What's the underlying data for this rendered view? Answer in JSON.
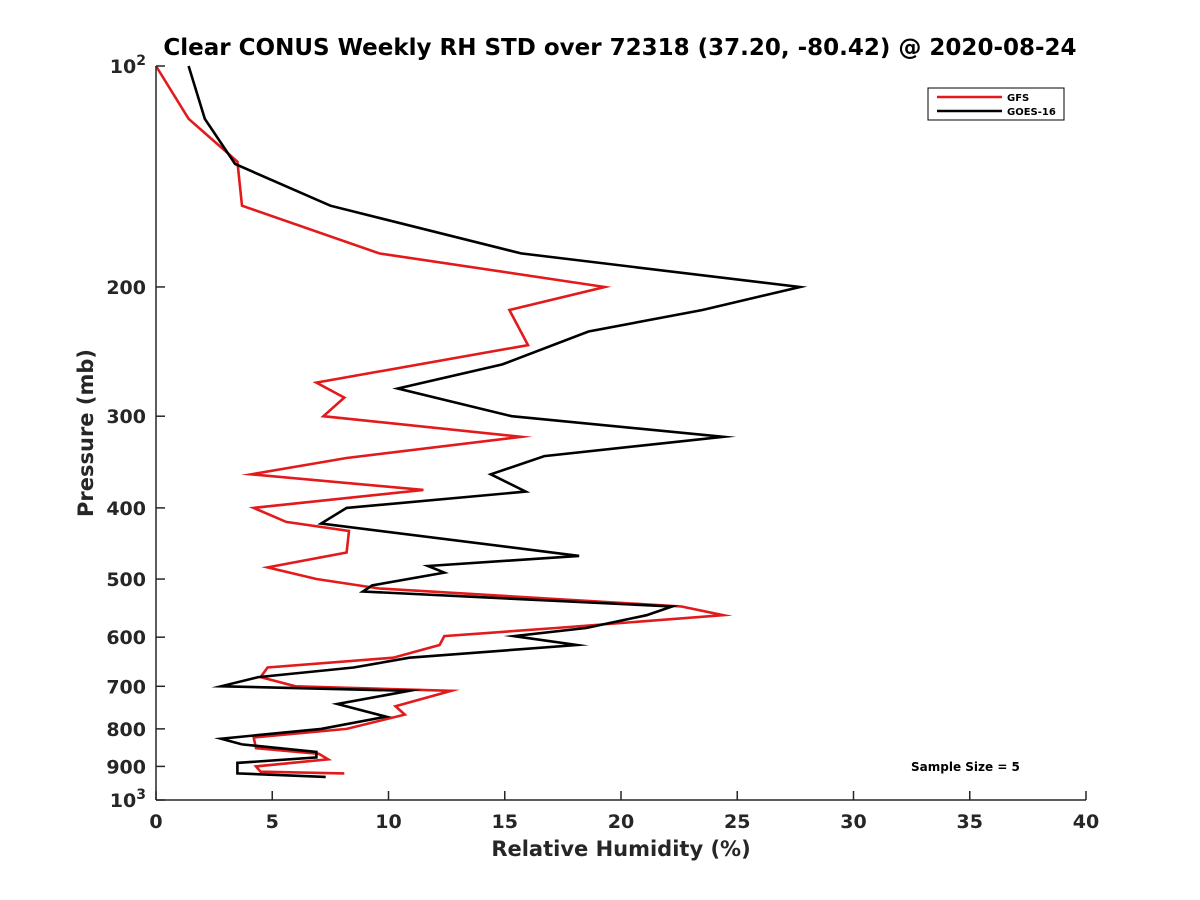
{
  "chart_data": {
    "type": "line",
    "title": "Clear CONUS Weekly RH STD over 72318 (37.20, -80.42) @ 2020-08-24",
    "xlabel": "Relative Humidity (%)",
    "ylabel": "Pressure (mb)",
    "xlim": [
      0,
      40
    ],
    "ylim": [
      100,
      1000
    ],
    "y_scale": "log",
    "y_reversed": true,
    "x_ticks": [
      0,
      5,
      10,
      15,
      20,
      25,
      30,
      35,
      40
    ],
    "x_tick_labels": [
      "0",
      "5",
      "10",
      "15",
      "20",
      "25",
      "30",
      "35",
      "40"
    ],
    "y_ticks": [
      100,
      200,
      300,
      400,
      500,
      600,
      700,
      800,
      900,
      1000
    ],
    "y_tick_labels": [
      {
        "base": "10",
        "exp": "2"
      },
      {
        "base": "200",
        "exp": ""
      },
      {
        "base": "300",
        "exp": ""
      },
      {
        "base": "400",
        "exp": ""
      },
      {
        "base": "500",
        "exp": ""
      },
      {
        "base": "600",
        "exp": ""
      },
      {
        "base": "700",
        "exp": ""
      },
      {
        "base": "800",
        "exp": ""
      },
      {
        "base": "900",
        "exp": ""
      },
      {
        "base": "10",
        "exp": "3"
      }
    ],
    "grid": false,
    "legend_position": "top-right",
    "annotation": "Sample Size = 5",
    "series": [
      {
        "name": "GFS",
        "color": "#e31a1c",
        "points": [
          [
            0.0,
            100
          ],
          [
            1.4,
            118
          ],
          [
            3.5,
            135
          ],
          [
            3.7,
            155
          ],
          [
            9.6,
            180
          ],
          [
            19.3,
            200
          ],
          [
            15.2,
            215
          ],
          [
            16.0,
            240
          ],
          [
            6.9,
            270
          ],
          [
            8.1,
            283
          ],
          [
            7.2,
            300
          ],
          [
            15.7,
            320
          ],
          [
            8.2,
            342
          ],
          [
            4.1,
            360
          ],
          [
            11.5,
            378
          ],
          [
            4.2,
            400
          ],
          [
            5.6,
            418
          ],
          [
            8.3,
            430
          ],
          [
            8.2,
            460
          ],
          [
            4.8,
            482
          ],
          [
            6.9,
            500
          ],
          [
            9.6,
            515
          ],
          [
            22.6,
            545
          ],
          [
            24.4,
            560
          ],
          [
            17.2,
            583
          ],
          [
            12.4,
            598
          ],
          [
            12.2,
            615
          ],
          [
            10.2,
            640
          ],
          [
            4.8,
            660
          ],
          [
            4.5,
            680
          ],
          [
            6.0,
            700
          ],
          [
            12.7,
            710
          ],
          [
            10.3,
            745
          ],
          [
            10.7,
            765
          ],
          [
            8.2,
            800
          ],
          [
            4.2,
            822
          ],
          [
            4.3,
            850
          ],
          [
            7.0,
            865
          ],
          [
            7.4,
            880
          ],
          [
            4.3,
            900
          ],
          [
            4.5,
            915
          ],
          [
            8.1,
            920
          ]
        ]
      },
      {
        "name": "GOES-16",
        "color": "#000000",
        "points": [
          [
            1.4,
            100
          ],
          [
            2.1,
            118
          ],
          [
            3.4,
            136
          ],
          [
            7.5,
            155
          ],
          [
            15.7,
            180
          ],
          [
            27.7,
            200
          ],
          [
            23.5,
            215
          ],
          [
            18.6,
            230
          ],
          [
            14.9,
            255
          ],
          [
            10.4,
            275
          ],
          [
            15.3,
            300
          ],
          [
            24.4,
            320
          ],
          [
            16.7,
            340
          ],
          [
            14.4,
            360
          ],
          [
            15.9,
            380
          ],
          [
            8.2,
            400
          ],
          [
            7.1,
            420
          ],
          [
            18.2,
            465
          ],
          [
            11.7,
            480
          ],
          [
            12.4,
            490
          ],
          [
            9.3,
            510
          ],
          [
            8.9,
            520
          ],
          [
            22.2,
            545
          ],
          [
            21.1,
            560
          ],
          [
            18.5,
            583
          ],
          [
            15.4,
            598
          ],
          [
            18.1,
            615
          ],
          [
            10.9,
            640
          ],
          [
            8.5,
            660
          ],
          [
            4.4,
            680
          ],
          [
            2.8,
            700
          ],
          [
            10.9,
            710
          ],
          [
            7.8,
            740
          ],
          [
            9.9,
            770
          ],
          [
            7.1,
            800
          ],
          [
            2.8,
            825
          ],
          [
            3.7,
            840
          ],
          [
            6.9,
            860
          ],
          [
            6.9,
            875
          ],
          [
            3.5,
            890
          ],
          [
            3.5,
            920
          ],
          [
            7.3,
            930
          ]
        ]
      }
    ]
  }
}
